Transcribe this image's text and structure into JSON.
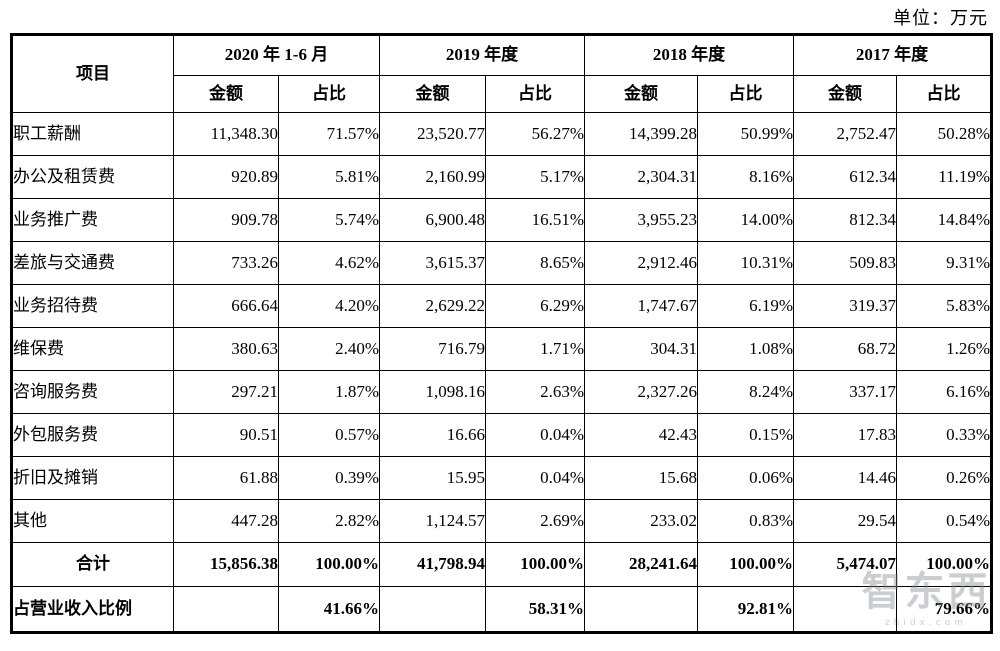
{
  "unit_label": "单位：万元",
  "table": {
    "item_header": "项目",
    "col_groups": [
      {
        "label": "2020 年 1-6 月"
      },
      {
        "label": "2019 年度"
      },
      {
        "label": "2018 年度"
      },
      {
        "label": "2017 年度"
      }
    ],
    "sub_headers": {
      "amount": "金额",
      "ratio": "占比"
    },
    "rows": [
      {
        "label": "职工薪酬",
        "values": [
          "11,348.30",
          "71.57%",
          "23,520.77",
          "56.27%",
          "14,399.28",
          "50.99%",
          "2,752.47",
          "50.28%"
        ]
      },
      {
        "label": "办公及租赁费",
        "values": [
          "920.89",
          "5.81%",
          "2,160.99",
          "5.17%",
          "2,304.31",
          "8.16%",
          "612.34",
          "11.19%"
        ]
      },
      {
        "label": "业务推广费",
        "values": [
          "909.78",
          "5.74%",
          "6,900.48",
          "16.51%",
          "3,955.23",
          "14.00%",
          "812.34",
          "14.84%"
        ]
      },
      {
        "label": "差旅与交通费",
        "values": [
          "733.26",
          "4.62%",
          "3,615.37",
          "8.65%",
          "2,912.46",
          "10.31%",
          "509.83",
          "9.31%"
        ]
      },
      {
        "label": "业务招待费",
        "values": [
          "666.64",
          "4.20%",
          "2,629.22",
          "6.29%",
          "1,747.67",
          "6.19%",
          "319.37",
          "5.83%"
        ]
      },
      {
        "label": "维保费",
        "values": [
          "380.63",
          "2.40%",
          "716.79",
          "1.71%",
          "304.31",
          "1.08%",
          "68.72",
          "1.26%"
        ]
      },
      {
        "label": "咨询服务费",
        "values": [
          "297.21",
          "1.87%",
          "1,098.16",
          "2.63%",
          "2,327.26",
          "8.24%",
          "337.17",
          "6.16%"
        ]
      },
      {
        "label": "外包服务费",
        "values": [
          "90.51",
          "0.57%",
          "16.66",
          "0.04%",
          "42.43",
          "0.15%",
          "17.83",
          "0.33%"
        ]
      },
      {
        "label": "折旧及摊销",
        "values": [
          "61.88",
          "0.39%",
          "15.95",
          "0.04%",
          "15.68",
          "0.06%",
          "14.46",
          "0.26%"
        ]
      },
      {
        "label": "其他",
        "values": [
          "447.28",
          "2.82%",
          "1,124.57",
          "2.69%",
          "233.02",
          "0.83%",
          "29.54",
          "0.54%"
        ]
      }
    ],
    "total_row": {
      "label": "合计",
      "values": [
        "15,856.38",
        "100.00%",
        "41,798.94",
        "100.00%",
        "28,241.64",
        "100.00%",
        "5,474.07",
        "100.00%"
      ]
    },
    "revenue_ratio_row": {
      "label": "占营业收入比例",
      "values": [
        "",
        "41.66%",
        "",
        "58.31%",
        "",
        "92.81%",
        "",
        "79.66%"
      ]
    }
  },
  "watermark": {
    "logo": "智东西",
    "site": "zhidx.com"
  }
}
